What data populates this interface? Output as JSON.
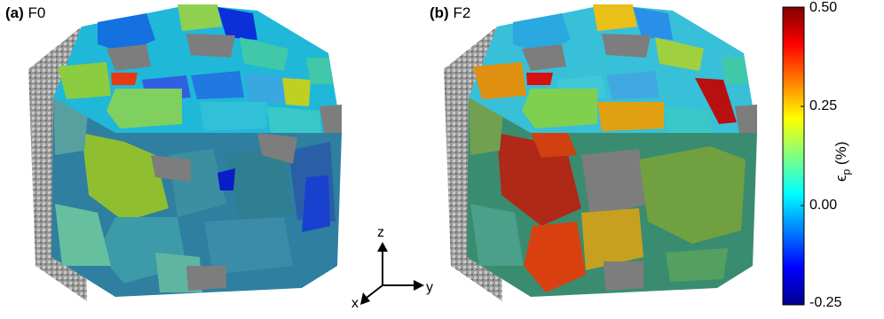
{
  "panels": [
    {
      "letter": "(a)",
      "name": "F0"
    },
    {
      "letter": "(b)",
      "name": "F2"
    }
  ],
  "colorbar": {
    "label": "ϵ",
    "label_sub": "p",
    "label_unit": "(%)",
    "min": -0.25,
    "max": 0.5,
    "tick_labels": [
      "0.50",
      "0.25",
      "0.00",
      "-0.25"
    ],
    "colormap": "jet"
  },
  "triad": {
    "z": "z",
    "x": "x",
    "y": "y"
  },
  "colors": {
    "gray_grain": "#7d7d7d",
    "edge_texture": "#c8c8c8"
  }
}
